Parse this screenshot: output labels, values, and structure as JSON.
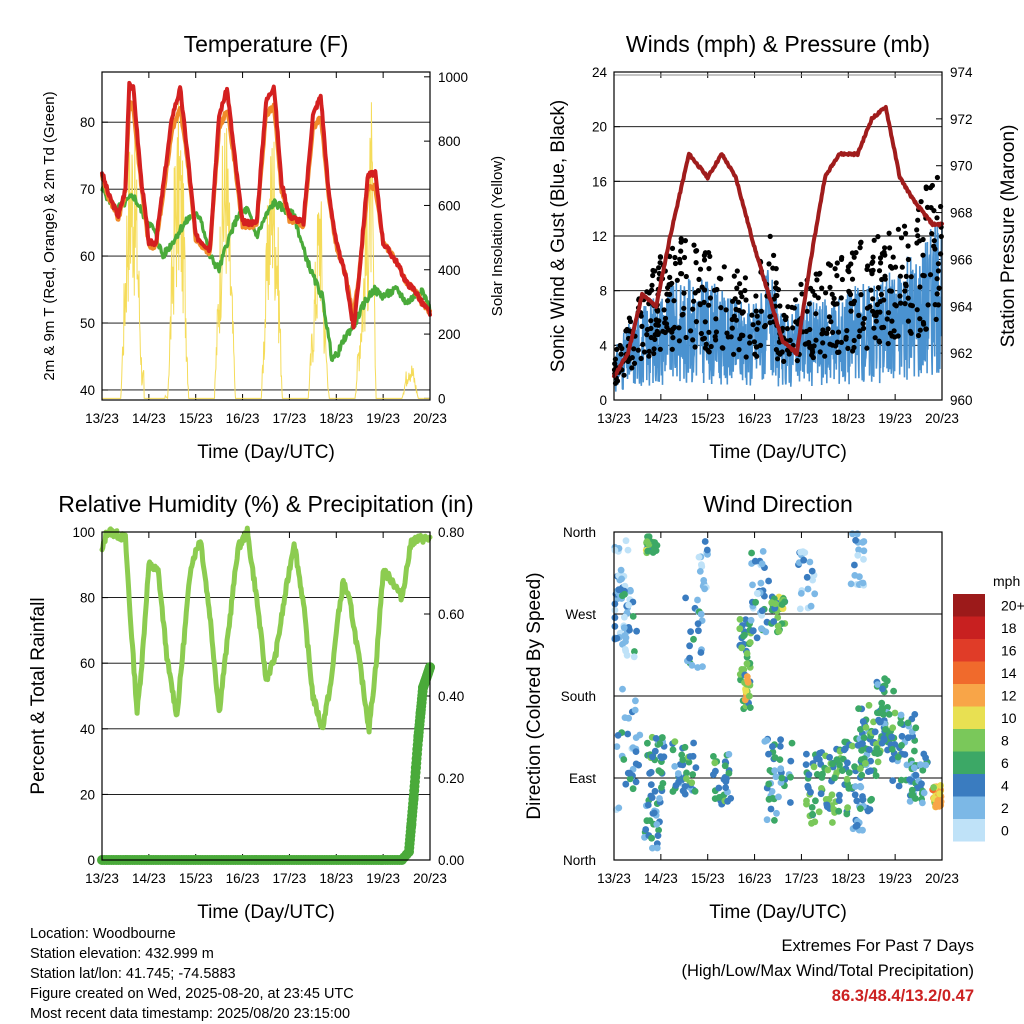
{
  "footer": {
    "location": "Location: Woodbourne",
    "elevation": "Station elevation: 432.999 m",
    "latlon": "Station lat/lon: 41.745; -74.5883",
    "created": "Figure created on Wed, 2025-08-20, at 23:45 UTC",
    "latest": "Most recent data timestamp: 2025/08/20 23:15:00"
  },
  "extremes": {
    "title": "Extremes For Past 7 Days",
    "subtitle": "(High/Low/Max Wind/Total Precipitation)",
    "values": "86.3/48.4/13.2/0.47"
  },
  "colors": {
    "temp_2m": "#d42020",
    "temp_9m": "#f08a2a",
    "dewpoint": "#4aaa3a",
    "solar": "#f5dc5a",
    "wind_sonic": "#4a92d0",
    "gust": "#000000",
    "pressure": "#a01c1c",
    "rh": "#8ccc50",
    "precip": "#4aaa3a"
  },
  "chart_data": [
    {
      "type": "line",
      "title": "Temperature (F)",
      "xlabel": "Time (Day/UTC)",
      "ylabel": "2m & 9m T (Red, Orange) & 2m Td (Green)",
      "ylabel_right": "Solar Insolation (Yellow)",
      "x_ticks": [
        "13/23",
        "14/23",
        "15/23",
        "16/23",
        "17/23",
        "18/23",
        "19/23",
        "20/23"
      ],
      "ylim": [
        38.5,
        87.5
      ],
      "y_ticks": [
        40,
        50,
        60,
        70,
        80
      ],
      "ylim_right": [
        -5,
        1015
      ],
      "y_ticks_right": [
        0,
        200,
        400,
        600,
        800,
        1000
      ],
      "grid": "horizontal",
      "series": [
        {
          "name": "2m T",
          "x": [
            0,
            0.15,
            0.35,
            0.5,
            0.58,
            0.67,
            0.83,
            1.0,
            1.15,
            1.5,
            1.67,
            1.83,
            2.0,
            2.3,
            2.5,
            2.67,
            2.83,
            3.0,
            3.3,
            3.5,
            3.67,
            3.83,
            4.0,
            4.3,
            4.5,
            4.67,
            4.83,
            5.0,
            5.2,
            5.37,
            5.5,
            5.67,
            5.83,
            6.0,
            6.3,
            6.5,
            6.67,
            6.83,
            7.0
          ],
          "values": [
            72.5,
            69,
            66,
            70,
            86,
            85,
            72,
            62,
            62,
            81,
            85,
            75,
            63,
            61,
            81,
            85,
            75,
            65,
            65,
            83,
            85.5,
            71,
            66,
            65,
            81,
            84,
            70,
            62,
            57,
            49,
            58,
            72,
            72.5,
            62,
            59,
            56,
            55,
            53,
            51.5
          ]
        },
        {
          "name": "9m T",
          "x": [
            0,
            0.15,
            0.35,
            0.5,
            0.58,
            0.67,
            0.83,
            1.0,
            1.15,
            1.5,
            1.67,
            1.83,
            2.0,
            2.3,
            2.5,
            2.67,
            2.83,
            3.0,
            3.3,
            3.5,
            3.67,
            3.83,
            4.0,
            4.3,
            4.5,
            4.67,
            4.83,
            5.0,
            5.2,
            5.37,
            5.5,
            5.67,
            5.83,
            6.0,
            6.3,
            6.5,
            6.67,
            6.83,
            7.0
          ],
          "values": [
            72,
            68.5,
            65.5,
            69.5,
            83,
            82,
            71,
            61.5,
            61.5,
            79,
            82,
            74,
            62.5,
            60.5,
            79,
            82,
            74,
            64.5,
            64.5,
            81,
            82.5,
            70,
            65.5,
            64.5,
            79,
            81,
            69,
            61.5,
            57,
            51,
            58,
            70,
            70.5,
            62,
            59,
            56,
            55,
            53,
            51.5
          ]
        },
        {
          "name": "2m Td",
          "x": [
            0,
            0.3,
            0.5,
            0.67,
            0.9,
            1.1,
            1.3,
            1.5,
            1.67,
            1.9,
            2.1,
            2.3,
            2.5,
            2.67,
            2.9,
            3.1,
            3.3,
            3.5,
            3.67,
            3.9,
            4.1,
            4.3,
            4.5,
            4.7,
            4.9,
            5.0,
            5.2,
            5.4,
            5.6,
            5.8,
            6.0,
            6.3,
            6.5,
            6.67,
            6.83,
            7.0
          ],
          "values": [
            70,
            67,
            68,
            69,
            66,
            64,
            60,
            62,
            64,
            66,
            66,
            60,
            58,
            62,
            66,
            67,
            63,
            66,
            68,
            67,
            66,
            61,
            57,
            54,
            45,
            45,
            48,
            50,
            53,
            55,
            54,
            55,
            53,
            54,
            55,
            52
          ]
        },
        {
          "name": "Solar Insolation",
          "axis": "right",
          "x": [
            0.4,
            0.55,
            0.65,
            0.75,
            0.85,
            1.4,
            1.55,
            1.65,
            1.75,
            1.85,
            2.4,
            2.55,
            2.65,
            2.75,
            2.85,
            3.4,
            3.55,
            3.65,
            3.75,
            3.85,
            4.4,
            4.55,
            4.65,
            4.75,
            4.85,
            5.4,
            5.55,
            5.65,
            5.75,
            5.85,
            6.4,
            6.55,
            6.65,
            6.75
          ],
          "values": [
            0,
            800,
            950,
            700,
            100,
            0,
            800,
            970,
            650,
            0,
            0,
            750,
            980,
            500,
            0,
            0,
            700,
            960,
            600,
            0,
            0,
            450,
            800,
            300,
            0,
            0,
            400,
            650,
            950,
            0,
            0,
            150,
            100,
            0
          ]
        }
      ]
    },
    {
      "type": "line",
      "title": "Winds (mph) & Pressure (mb)",
      "xlabel": "Time (Day/UTC)",
      "ylabel": "Sonic Wind & Gust (Blue, Black)",
      "ylabel_right": "Station Pressure (Maroon)",
      "x_ticks": [
        "13/23",
        "14/23",
        "15/23",
        "16/23",
        "17/23",
        "18/23",
        "19/23",
        "20/23"
      ],
      "ylim": [
        0,
        24
      ],
      "y_ticks": [
        0,
        4,
        8,
        12,
        16,
        20,
        24
      ],
      "ylim_right": [
        960,
        974
      ],
      "y_ticks_right": [
        960,
        962,
        964,
        966,
        968,
        970,
        972,
        974
      ],
      "grid": "horizontal",
      "series": [
        {
          "name": "Sonic Wind",
          "x": [
            0,
            0.5,
            1.0,
            1.5,
            2.0,
            2.5,
            3.0,
            3.3,
            3.6,
            4.0,
            4.5,
            5.0,
            5.5,
            6.0,
            6.5,
            7.0
          ],
          "values": [
            2.5,
            4.5,
            5.5,
            6,
            6,
            5,
            5,
            6.5,
            4,
            5,
            5,
            5.5,
            6,
            6.5,
            7.5,
            10
          ]
        },
        {
          "name": "Gust",
          "x": [
            0,
            0.5,
            1.0,
            1.5,
            2.0,
            2.5,
            3.0,
            3.3,
            3.6,
            4.0,
            4.5,
            5.0,
            5.5,
            6.0,
            6.5,
            7.0
          ],
          "values": [
            3,
            7,
            10,
            11,
            10,
            9,
            8,
            12,
            6,
            8,
            9,
            10,
            11,
            12,
            13,
            17
          ]
        },
        {
          "name": "Station Pressure",
          "axis": "right",
          "x": [
            0,
            0.3,
            0.6,
            0.9,
            1.2,
            1.6,
            2.0,
            2.3,
            2.6,
            3.0,
            3.3,
            3.6,
            3.9,
            4.2,
            4.5,
            4.8,
            5.2,
            5.5,
            5.8,
            6.1,
            6.4,
            6.8,
            7.0
          ],
          "values": [
            961,
            962,
            964.5,
            964,
            967,
            970.5,
            969.5,
            970.5,
            969.5,
            966.5,
            964.5,
            962.5,
            962,
            966,
            969.5,
            970.5,
            970.5,
            972,
            972.5,
            969.5,
            968.5,
            967.5,
            967.5
          ]
        }
      ]
    },
    {
      "type": "line",
      "title": "Relative Humidity (%) & Precipitation (in)",
      "xlabel": "Time (Day/UTC)",
      "ylabel": "Percent & Total Rainfall",
      "x_ticks": [
        "13/23",
        "14/23",
        "15/23",
        "16/23",
        "17/23",
        "18/23",
        "19/23",
        "20/23"
      ],
      "ylim": [
        0,
        100
      ],
      "y_ticks": [
        0,
        20,
        40,
        60,
        80,
        100
      ],
      "ylim_right": [
        0,
        0.8
      ],
      "y_ticks_right": [
        "0.00",
        "0.20",
        "0.40",
        "0.60",
        "0.80"
      ],
      "grid": "horizontal",
      "series": [
        {
          "name": "RH",
          "x": [
            0,
            0.1,
            0.2,
            0.5,
            0.6,
            0.75,
            0.85,
            1.0,
            1.2,
            1.4,
            1.6,
            1.8,
            1.9,
            2.1,
            2.3,
            2.5,
            2.7,
            2.9,
            3.1,
            3.3,
            3.5,
            3.7,
            3.9,
            4.1,
            4.3,
            4.5,
            4.7,
            4.9,
            5.0,
            5.15,
            5.3,
            5.5,
            5.7,
            5.85,
            6.0,
            6.2,
            6.4,
            6.6,
            6.8,
            7.0
          ],
          "values": [
            94,
            100,
            100,
            98,
            75,
            45,
            60,
            90,
            88,
            60,
            44,
            75,
            90,
            98,
            75,
            45,
            70,
            95,
            100,
            80,
            55,
            62,
            80,
            97,
            78,
            50,
            40,
            55,
            70,
            85,
            78,
            60,
            40,
            60,
            88,
            85,
            80,
            97,
            98,
            98
          ]
        },
        {
          "name": "Total Rainfall",
          "axis": "right",
          "x": [
            0,
            6.0,
            6.4,
            6.55,
            6.65,
            6.75,
            6.85,
            7.0
          ],
          "values": [
            0,
            0,
            0,
            0.02,
            0.15,
            0.3,
            0.42,
            0.47
          ]
        }
      ]
    },
    {
      "type": "scatter",
      "title": "Wind Direction",
      "xlabel": "Time (Day/UTC)",
      "ylabel": "Direction (Colored By Speed)",
      "x_ticks": [
        "13/23",
        "14/23",
        "15/23",
        "16/23",
        "17/23",
        "18/23",
        "19/23",
        "20/23"
      ],
      "y_ticks": [
        "North",
        "East",
        "South",
        "West",
        "North"
      ],
      "ylim": [
        0,
        360
      ],
      "grid": "horizontal",
      "legend": {
        "title": "mph",
        "labels": [
          "20+",
          "18",
          "16",
          "14",
          "12",
          "10",
          "8",
          "6",
          "4",
          "2",
          "0"
        ],
        "colors": [
          "#9c1a1a",
          "#c82020",
          "#e03c28",
          "#f06a2c",
          "#f8a548",
          "#e8e052",
          "#7ac85a",
          "#3ca866",
          "#3a7cc0",
          "#7cb8e6",
          "#bfe2f8"
        ]
      }
    }
  ]
}
